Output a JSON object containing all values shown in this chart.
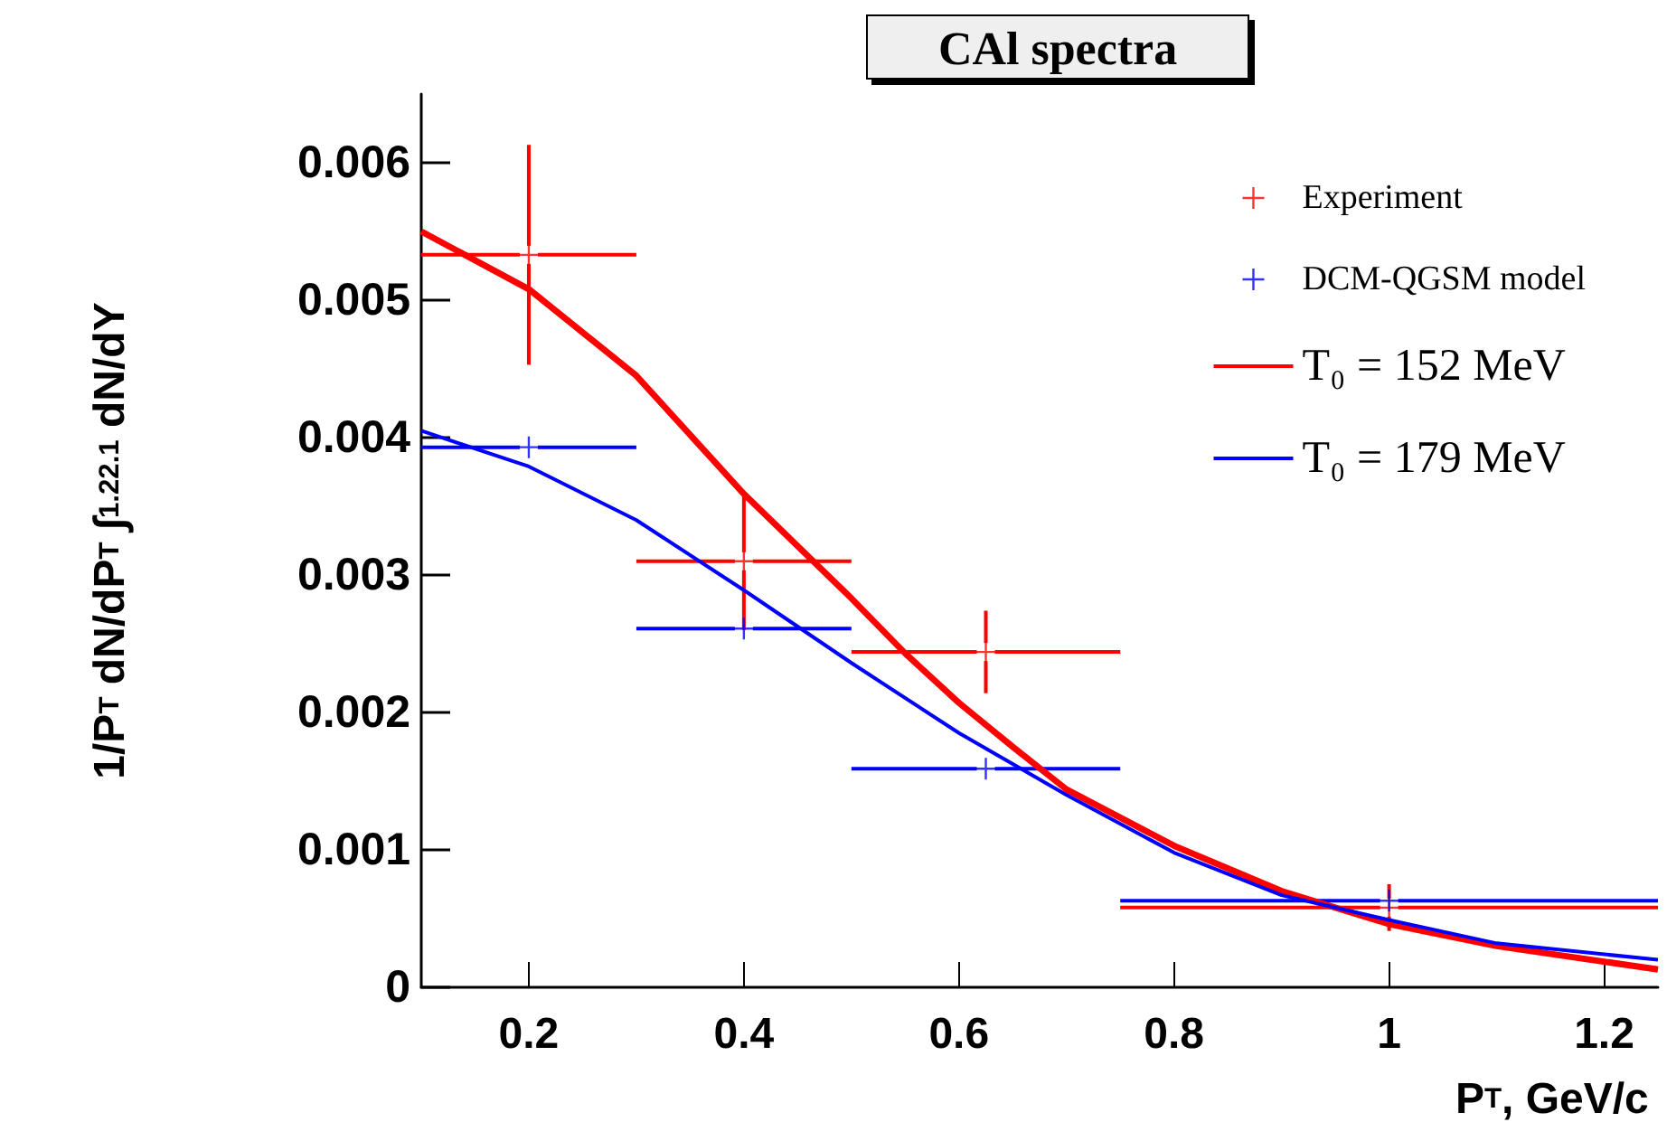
{
  "chart_data": {
    "type": "scatter",
    "title": "CAl spectra",
    "xlabel": "P$_{T}$, GeV/c",
    "ylabel": "1/P$_{T}$ dN/dP$_{T}$ ∫$_{1.2}$$^{2.1}$ dN/dY",
    "xlim": [
      0.1,
      1.25
    ],
    "xticks": [
      0.2,
      0.4,
      0.6,
      0.8,
      1,
      1.2
    ],
    "ylim": [
      0,
      0.0065
    ],
    "yticks": [
      0,
      0.001,
      0.002,
      0.003,
      0.004,
      0.005,
      0.006
    ],
    "grid": false,
    "legend": "top right",
    "marker": "none",
    "line_style": "solid",
    "series": [
      {
        "name": "Experiment",
        "marker": "cross",
        "color": "#ff0000",
        "x": [
          0.2,
          0.4,
          0.625,
          1.0
        ],
        "values": [
          0.00533,
          0.0031,
          0.00244,
          0.00058
        ],
        "errors": [
          0.0008,
          0.0005,
          0.0003,
          0.00017
        ],
        "xerrors": [
          0.1,
          0.1,
          0.125,
          0.25
        ]
      },
      {
        "name": "DCM-QGSM model",
        "marker": "cross",
        "color": "#0000ff",
        "x": [
          0.2,
          0.4,
          0.625,
          1.0
        ],
        "values": [
          0.00393,
          0.00261,
          0.00159,
          0.00063
        ],
        "xerrors": [
          0.1,
          0.1,
          0.125,
          0.25
        ]
      },
      {
        "name": "T₀ = 152 MeV",
        "type": "line",
        "color": "#ff0000",
        "x": [
          0.1,
          0.2,
          0.3,
          0.4,
          0.5,
          0.55,
          0.6,
          0.65,
          0.7,
          0.8,
          0.9,
          1.0,
          1.1,
          1.25
        ],
        "values": [
          0.0055,
          0.00508,
          0.00445,
          0.00359,
          0.00283,
          0.00243,
          0.00207,
          0.00175,
          0.00144,
          0.00103,
          0.0007,
          0.00046,
          0.0003,
          0.00013
        ]
      },
      {
        "name": "T₀ = 179 MeV",
        "type": "line",
        "color": "#0000ff",
        "x": [
          0.1,
          0.2,
          0.3,
          0.4,
          0.5,
          0.6,
          0.7,
          0.8,
          0.9,
          1.0,
          1.1,
          1.25
        ],
        "values": [
          0.00405,
          0.00379,
          0.0034,
          0.00289,
          0.00236,
          0.00185,
          0.0014,
          0.00098,
          0.00067,
          0.00049,
          0.00032,
          0.0002
        ]
      }
    ]
  }
}
